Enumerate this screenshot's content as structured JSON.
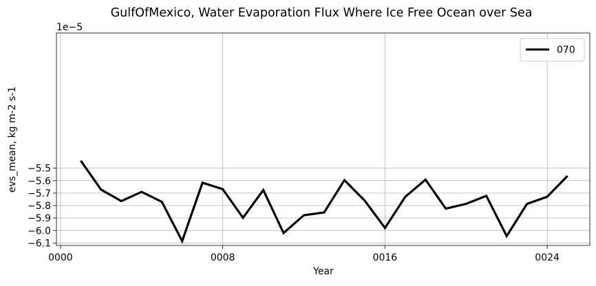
{
  "chart_data": {
    "type": "line",
    "title": "GulfOfMexico, Water Evaporation Flux Where Ice Free Ocean over Sea",
    "xlabel": "Year",
    "ylabel": "evs_mean, kg m-2 s-1",
    "y_offset_label": "1e−5",
    "xlim": [
      -0.2,
      26.1
    ],
    "ylim": [
      -6.12,
      -4.415
    ],
    "x_ticks": [
      0,
      8,
      16,
      24
    ],
    "x_tick_labels": [
      "0000",
      "0008",
      "0016",
      "0024"
    ],
    "y_ticks": [
      -6.1,
      -6.0,
      -5.9,
      -5.8,
      -5.7,
      -5.6,
      -5.5
    ],
    "y_tick_labels": [
      "−6.1",
      "−6.0",
      "−5.9",
      "−5.8",
      "−5.7",
      "−5.6",
      "−5.5"
    ],
    "grid": true,
    "legend_position": "top-right",
    "series": [
      {
        "name": "070",
        "color": "#000000",
        "x": [
          1,
          2,
          3,
          4,
          5,
          6,
          7,
          8,
          9,
          10,
          11,
          12,
          13,
          14,
          15,
          16,
          17,
          18,
          19,
          20,
          21,
          22,
          23,
          24,
          25
        ],
        "values": [
          -5.44,
          -5.672,
          -5.764,
          -5.69,
          -5.77,
          -6.085,
          -5.617,
          -5.668,
          -5.898,
          -5.675,
          -6.02,
          -5.878,
          -5.855,
          -5.596,
          -5.76,
          -5.98,
          -5.73,
          -5.592,
          -5.825,
          -5.786,
          -5.722,
          -6.045,
          -5.787,
          -5.729,
          -5.562
        ]
      }
    ]
  }
}
